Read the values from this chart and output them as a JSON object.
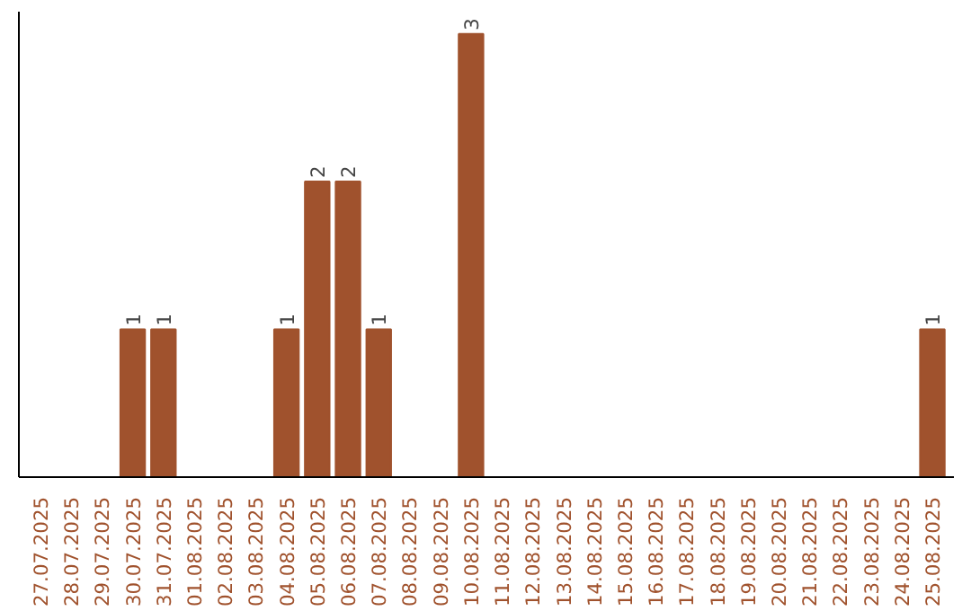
{
  "chart_data": {
    "type": "bar",
    "categories": [
      "27.07.2025",
      "28.07.2025",
      "29.07.2025",
      "30.07.2025",
      "31.07.2025",
      "01.08.2025",
      "02.08.2025",
      "03.08.2025",
      "04.08.2025",
      "05.08.2025",
      "06.08.2025",
      "07.08.2025",
      "08.08.2025",
      "09.08.2025",
      "10.08.2025",
      "11.08.2025",
      "12.08.2025",
      "13.08.2025",
      "14.08.2025",
      "15.08.2025",
      "16.08.2025",
      "17.08.2025",
      "18.08.2025",
      "19.08.2025",
      "20.08.2025",
      "21.08.2025",
      "22.08.2025",
      "23.08.2025",
      "24.08.2025",
      "25.08.2025"
    ],
    "values": [
      0,
      0,
      0,
      1,
      1,
      0,
      0,
      0,
      1,
      2,
      2,
      1,
      0,
      0,
      3,
      0,
      0,
      0,
      0,
      0,
      0,
      0,
      0,
      0,
      0,
      0,
      0,
      0,
      0,
      1
    ],
    "value_labels": [
      null,
      null,
      null,
      "1",
      "1",
      null,
      null,
      null,
      "1",
      "2",
      "2",
      "1",
      null,
      null,
      "3",
      null,
      null,
      null,
      null,
      null,
      null,
      null,
      null,
      null,
      null,
      null,
      null,
      null,
      null,
      "1"
    ],
    "color": "#a0522d",
    "grid": false,
    "tick_labels": "x"
  }
}
